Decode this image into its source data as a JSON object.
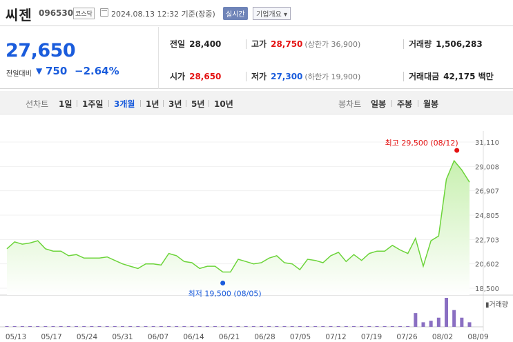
{
  "header": {
    "name": "씨젠",
    "code": "096530",
    "market": "코스닥",
    "date": "2024.08.13 12:32 기준(장중)",
    "realtime": "실시간",
    "company_info": "기업개요 ▾"
  },
  "summary": {
    "price": "27,650",
    "change_label": "전일대비",
    "change_arrow": "▼",
    "change_amount": "750",
    "change_pct": "−2.64%",
    "prev_label": "전일",
    "prev_value": "28,400",
    "open_label": "시가",
    "open_value": "28,650",
    "high_label": "고가",
    "high_value": "28,750",
    "upper_limit": "(상한가 36,900)",
    "low_label": "저가",
    "low_value": "27,300",
    "lower_limit": "(하한가 19,900)",
    "volume_label": "거래량",
    "volume_value": "1,506,283",
    "amount_label": "거래대금",
    "amount_value": "42,175 백만"
  },
  "tabs": {
    "line_label": "선차트",
    "line_periods": [
      "1일",
      "1주일",
      "3개월",
      "1년",
      "3년",
      "5년",
      "10년"
    ],
    "active": "3개월",
    "candle_label": "봉차트",
    "candle_periods": [
      "일봉",
      "주봉",
      "월봉"
    ]
  },
  "colors": {
    "down": "#1a5cdc",
    "up": "#e41212",
    "line": "#6cd43a",
    "fill": "#c8f0b0",
    "volume": "#8a6fc2"
  },
  "chart_data": {
    "type": "area",
    "x_ticks": [
      "05/13",
      "05/17",
      "05/24",
      "05/31",
      "06/07",
      "06/14",
      "06/21",
      "06/28",
      "07/05",
      "07/12",
      "07/19",
      "07/26",
      "08/02",
      "08/09"
    ],
    "y_ticks": [
      "31,110",
      "29,008",
      "26,907",
      "24,805",
      "22,703",
      "20,602",
      "18,500"
    ],
    "ylim": [
      18500,
      31110
    ],
    "price": [
      21900,
      22500,
      22300,
      22400,
      22600,
      21900,
      21700,
      21700,
      21300,
      21400,
      21100,
      21100,
      21100,
      21200,
      20900,
      20600,
      20400,
      20200,
      20600,
      20600,
      20500,
      21500,
      21300,
      20800,
      20700,
      20200,
      20400,
      20400,
      19900,
      19900,
      21000,
      20800,
      20600,
      20700,
      21100,
      21300,
      20700,
      20600,
      20100,
      21000,
      20900,
      20700,
      21300,
      21600,
      20800,
      21400,
      20900,
      21500,
      21700,
      21700,
      22200,
      21800,
      21500,
      22800,
      20400,
      22600,
      23000,
      27900,
      29500,
      28700,
      27650
    ],
    "volume": [
      0.02,
      0.02,
      0.02,
      0.02,
      0.02,
      0.02,
      0.02,
      0.01,
      0.01,
      0.01,
      0.01,
      0.01,
      0.01,
      0.01,
      0.01,
      0.01,
      0.01,
      0.01,
      0.01,
      0.01,
      0.01,
      0.01,
      0.01,
      0.01,
      0.01,
      0.01,
      0.01,
      0.01,
      0.01,
      0.01,
      0.01,
      0.01,
      0.01,
      0.01,
      0.01,
      0.01,
      0.01,
      0.01,
      0.01,
      0.01,
      0.01,
      0.01,
      0.01,
      0.01,
      0.01,
      0.01,
      0.01,
      0.01,
      0.01,
      0.01,
      0.01,
      0.01,
      0.01,
      0.45,
      0.15,
      0.2,
      0.3,
      0.95,
      0.55,
      0.3,
      0.15
    ],
    "high_label": "최고 29,500 (08/12)",
    "low_label": "최저 19,500 (08/05)",
    "volume_label": "거래량"
  }
}
